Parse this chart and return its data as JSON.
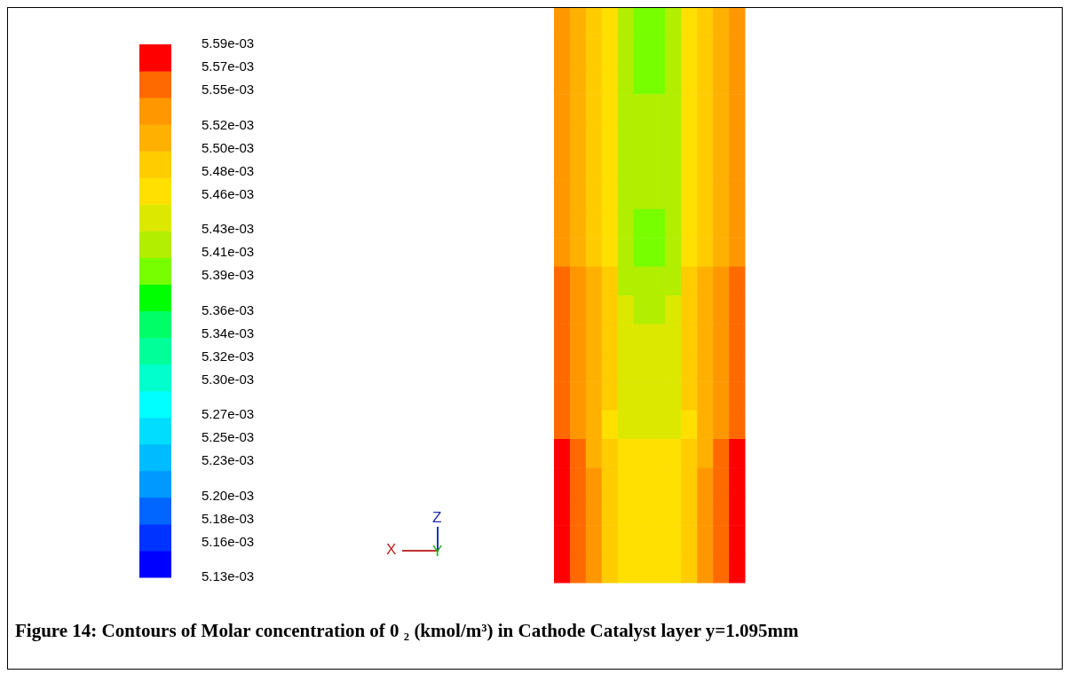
{
  "chart_data": {
    "type": "heatmap",
    "title": "Figure 14: Contours of Molar concentration of 0 ₂ (kmol/m³) in Cathode Catalyst layer y=1.095mm",
    "categories": [
      null,
      null,
      null,
      null,
      null,
      null,
      null,
      null,
      null,
      null,
      null,
      null
    ],
    "y_categories": [
      null,
      null,
      null,
      null,
      null,
      null,
      null,
      null,
      null,
      null,
      null,
      null,
      null,
      null,
      null,
      null,
      null,
      null,
      null,
      null
    ],
    "cells": [
      [
        0.00553,
        0.00551,
        0.00549,
        0.005465,
        0.00542,
        0.005395,
        0.005395,
        0.00542,
        0.005465,
        0.00549,
        0.00551,
        0.00553
      ],
      [
        0.00553,
        0.00551,
        0.00549,
        0.005465,
        0.00542,
        0.005395,
        0.005395,
        0.00542,
        0.005465,
        0.00549,
        0.00551,
        0.00553
      ],
      [
        0.00553,
        0.00551,
        0.00549,
        0.005465,
        0.00542,
        0.005395,
        0.005395,
        0.00542,
        0.005465,
        0.00549,
        0.00551,
        0.00553
      ],
      [
        0.00553,
        0.00551,
        0.00549,
        0.005465,
        0.00542,
        0.00542,
        0.00542,
        0.00542,
        0.005465,
        0.00549,
        0.00551,
        0.00553
      ],
      [
        0.00553,
        0.00551,
        0.00549,
        0.005465,
        0.00542,
        0.00542,
        0.00542,
        0.00542,
        0.005465,
        0.00549,
        0.00551,
        0.00553
      ],
      [
        0.00553,
        0.00551,
        0.00549,
        0.005465,
        0.00542,
        0.00542,
        0.00542,
        0.00542,
        0.005465,
        0.00549,
        0.00551,
        0.00553
      ],
      [
        0.00553,
        0.00551,
        0.00549,
        0.005465,
        0.00542,
        0.00542,
        0.00542,
        0.00542,
        0.005465,
        0.00549,
        0.00551,
        0.00553
      ],
      [
        0.00553,
        0.00551,
        0.00549,
        0.005465,
        0.00542,
        0.005395,
        0.005395,
        0.00542,
        0.005465,
        0.00549,
        0.00551,
        0.00553
      ],
      [
        0.00553,
        0.00551,
        0.00549,
        0.005465,
        0.00542,
        0.005395,
        0.005395,
        0.00542,
        0.005465,
        0.00549,
        0.00551,
        0.00553
      ],
      [
        0.005555,
        0.00553,
        0.00551,
        0.00549,
        0.00542,
        0.00542,
        0.00542,
        0.00542,
        0.00549,
        0.00551,
        0.00553,
        0.005555
      ],
      [
        0.005555,
        0.00553,
        0.00551,
        0.00549,
        0.00544,
        0.00542,
        0.00542,
        0.00544,
        0.00549,
        0.00551,
        0.00553,
        0.005555
      ],
      [
        0.005555,
        0.00553,
        0.00551,
        0.00549,
        0.00544,
        0.00544,
        0.00544,
        0.00544,
        0.00549,
        0.00551,
        0.00553,
        0.005555
      ],
      [
        0.005555,
        0.00553,
        0.00551,
        0.00549,
        0.00544,
        0.00544,
        0.00544,
        0.00544,
        0.00549,
        0.00551,
        0.00553,
        0.005555
      ],
      [
        0.005555,
        0.00553,
        0.00551,
        0.00549,
        0.00544,
        0.00544,
        0.00544,
        0.00544,
        0.00549,
        0.00551,
        0.00553,
        0.005555
      ],
      [
        0.005555,
        0.00553,
        0.00551,
        0.005465,
        0.00544,
        0.00544,
        0.00544,
        0.00544,
        0.005465,
        0.00551,
        0.00553,
        0.005555
      ],
      [
        0.00558,
        0.005555,
        0.00551,
        0.00549,
        0.005465,
        0.005465,
        0.005465,
        0.005465,
        0.00549,
        0.00551,
        0.005555,
        0.00558
      ],
      [
        0.00558,
        0.005555,
        0.00553,
        0.00549,
        0.005465,
        0.005465,
        0.005465,
        0.005465,
        0.00549,
        0.00553,
        0.005555,
        0.00558
      ],
      [
        0.00558,
        0.005555,
        0.00553,
        0.00549,
        0.005465,
        0.005465,
        0.005465,
        0.005465,
        0.00549,
        0.00553,
        0.005555,
        0.00558
      ],
      [
        0.00558,
        0.005555,
        0.00553,
        0.00549,
        0.005465,
        0.005465,
        0.005465,
        0.005465,
        0.00549,
        0.00553,
        0.005555,
        0.00558
      ],
      [
        0.00558,
        0.005555,
        0.00553,
        0.00549,
        0.005465,
        0.005465,
        0.005465,
        0.005465,
        0.00549,
        0.00553,
        0.005555,
        0.00558
      ]
    ],
    "clim": [
      0.00513,
      0.00559
    ],
    "cticks": [
      {
        "value": 0.00513,
        "label": "5.13e-03"
      },
      {
        "value": 0.00516,
        "label": "5.16e-03"
      },
      {
        "value": 0.00518,
        "label": "5.18e-03"
      },
      {
        "value": 0.0052,
        "label": "5.20e-03"
      },
      {
        "value": 0.00523,
        "label": "5.23e-03"
      },
      {
        "value": 0.00525,
        "label": "5.25e-03"
      },
      {
        "value": 0.00527,
        "label": "5.27e-03"
      },
      {
        "value": 0.0053,
        "label": "5.30e-03"
      },
      {
        "value": 0.00532,
        "label": "5.32e-03"
      },
      {
        "value": 0.00534,
        "label": "5.34e-03"
      },
      {
        "value": 0.00536,
        "label": "5.36e-03"
      },
      {
        "value": 0.00539,
        "label": "5.39e-03"
      },
      {
        "value": 0.00541,
        "label": "5.41e-03"
      },
      {
        "value": 0.00543,
        "label": "5.43e-03"
      },
      {
        "value": 0.00546,
        "label": "5.46e-03"
      },
      {
        "value": 0.00548,
        "label": "5.48e-03"
      },
      {
        "value": 0.0055,
        "label": "5.50e-03"
      },
      {
        "value": 0.00552,
        "label": "5.52e-03"
      },
      {
        "value": 0.00555,
        "label": "5.55e-03"
      },
      {
        "value": 0.00557,
        "label": "5.57e-03"
      },
      {
        "value": 0.00559,
        "label": "5.59e-03"
      }
    ],
    "colors": [
      "#0000ff",
      "#0033ff",
      "#0066ff",
      "#0099ff",
      "#00bbff",
      "#00ddff",
      "#00ffff",
      "#00ffcc",
      "#00ff99",
      "#00ff66",
      "#00ff00",
      "#77ff00",
      "#b2ee00",
      "#dde800",
      "#ffe000",
      "#ffcc00",
      "#ffb000",
      "#ff9800",
      "#ff6a00",
      "#ff0000"
    ],
    "annotations": [
      "X",
      "Y",
      "Z"
    ]
  }
}
